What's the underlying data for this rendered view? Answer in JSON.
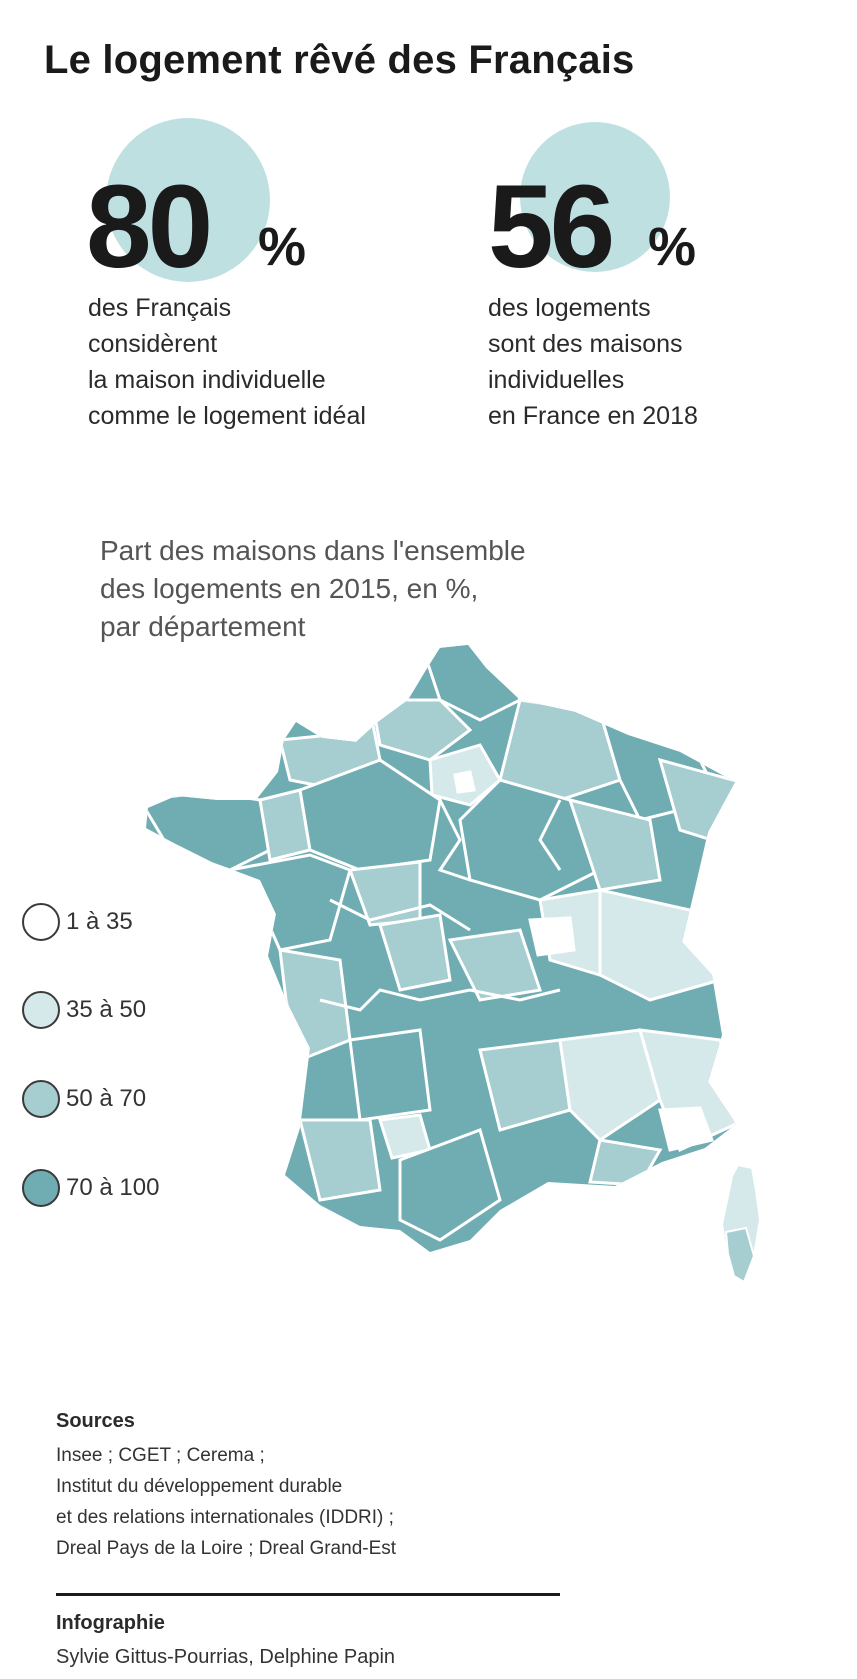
{
  "title": "Le logement rêvé des Français",
  "colors": {
    "bubble": "#bfe0e1",
    "level_1_35": "#ffffff",
    "level_35_50": "#d6e9ea",
    "level_50_70": "#a6cdd0",
    "level_70_100": "#6fadb3",
    "border": "#ffffff"
  },
  "stats": [
    {
      "value": "80",
      "unit": "%",
      "text": "des Français\nconsidèrent\nla maison individuelle\ncomme le logement idéal"
    },
    {
      "value": "56",
      "unit": "%",
      "text": "des logements\nsont des maisons\nindividuelles\nen France en 2018"
    }
  ],
  "map": {
    "caption": "Part des maisons dans l'ensemble\ndes logements en 2015, en %,\npar département",
    "legend": [
      {
        "label": "1 à 35",
        "color": "#ffffff"
      },
      {
        "label": "35 à 50",
        "color": "#d6e9ea"
      },
      {
        "label": "50 à 70",
        "color": "#a6cdd0"
      },
      {
        "label": "70 à 100",
        "color": "#6fadb3"
      }
    ]
  },
  "sources": {
    "title": "Sources",
    "text": "Insee ; CGET ; Cerema ;\nInstitut du développement durable\net des relations internationales (IDDRI) ;\nDreal Pays de la Loire ; Dreal Grand-Est"
  },
  "credit": {
    "title": "Infographie",
    "text": "Sylvie Gittus-Pourrias, Delphine Papin"
  }
}
